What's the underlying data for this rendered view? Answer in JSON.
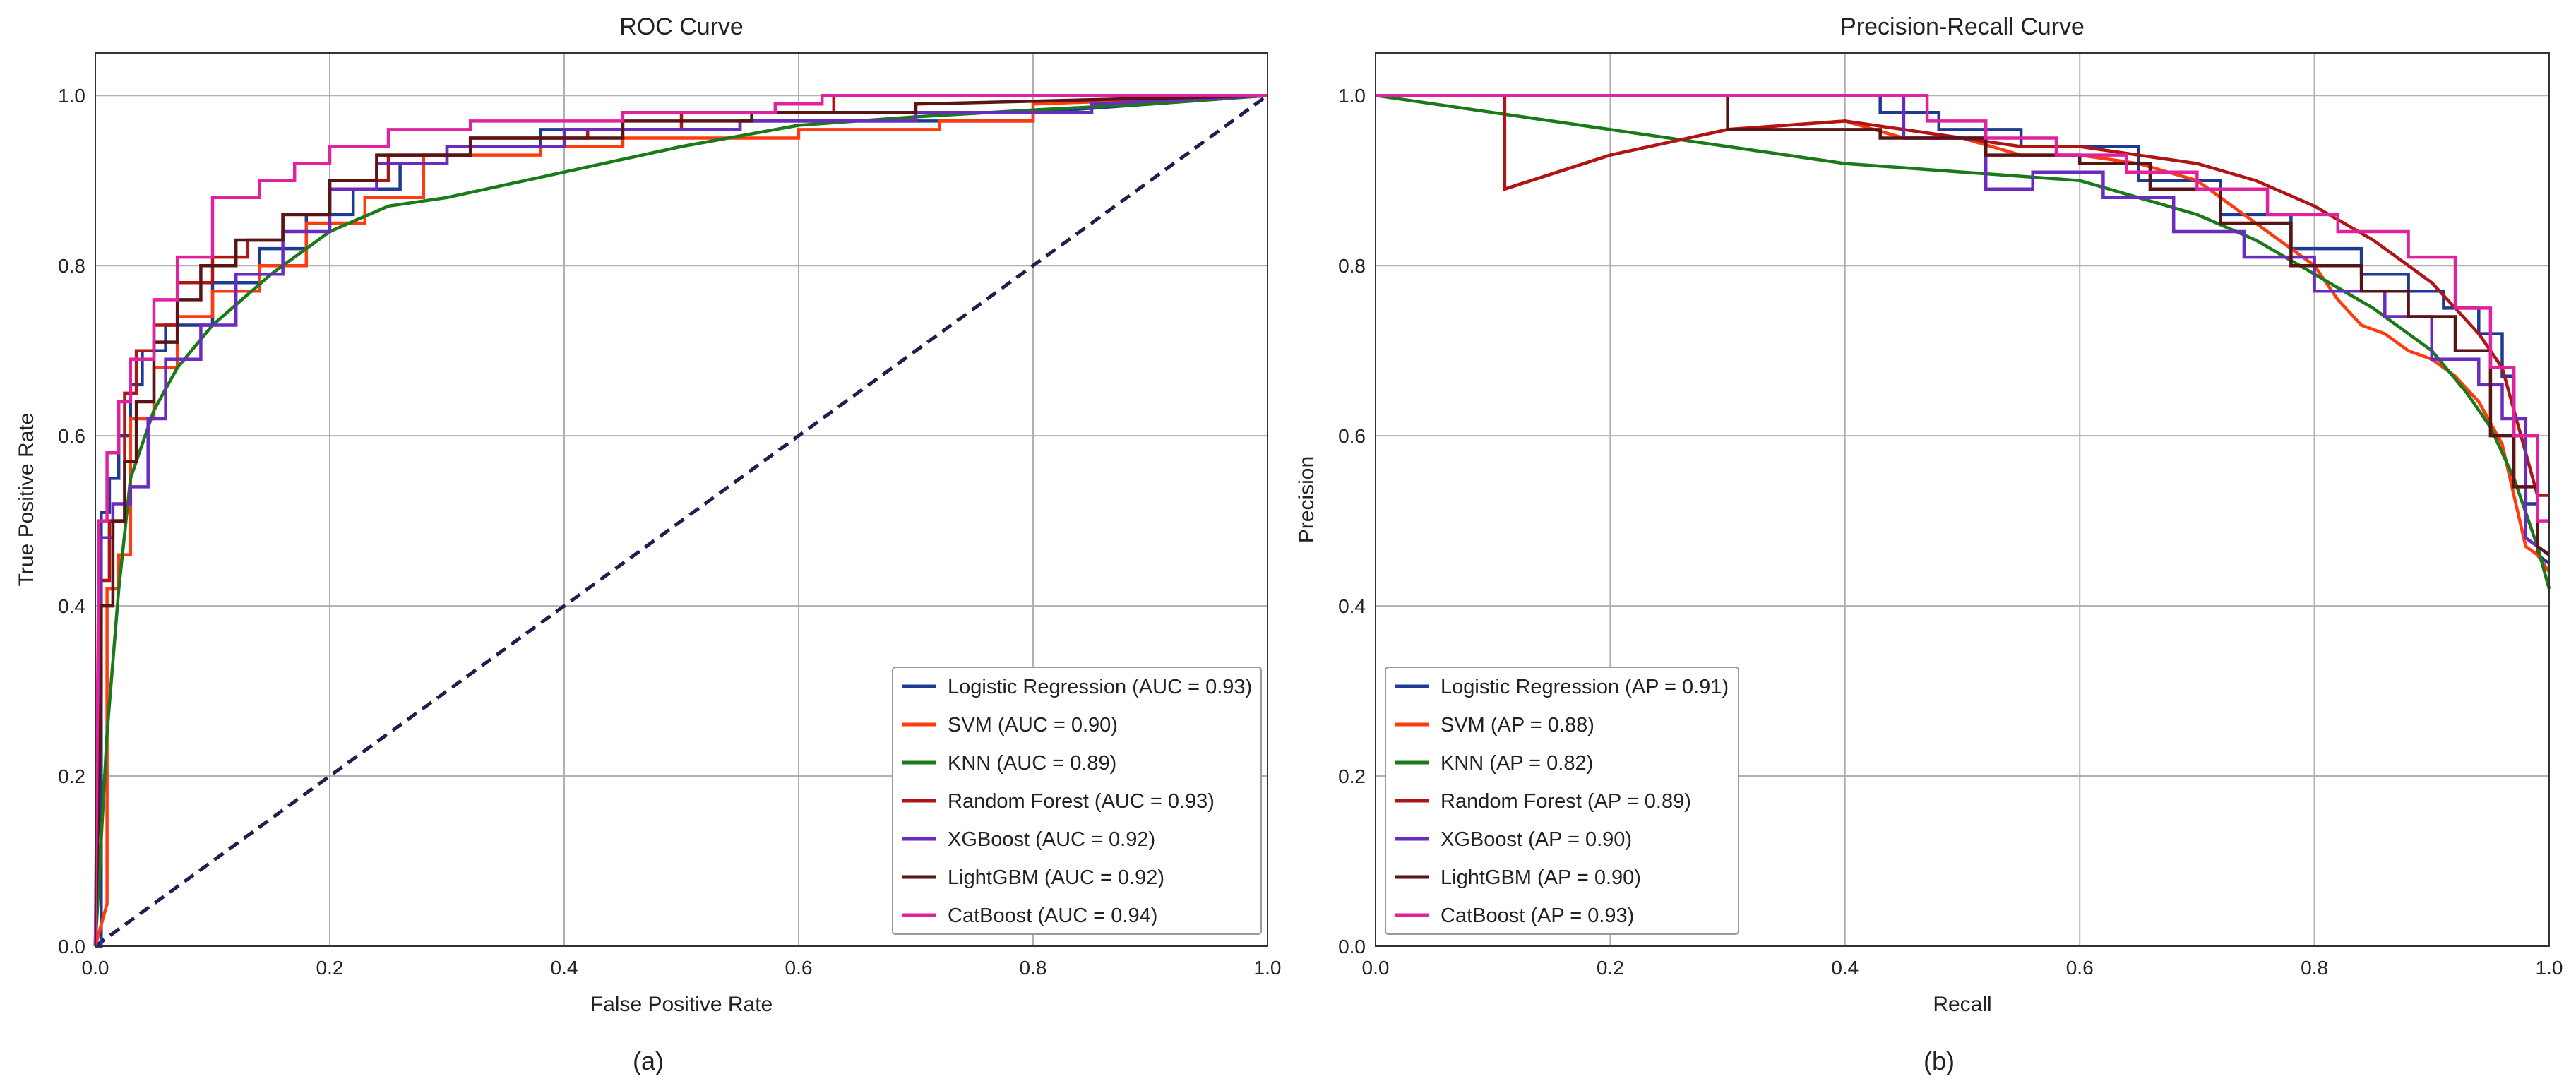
{
  "figure": {
    "panel_labels": [
      "(a)",
      "(b)"
    ]
  },
  "chart_data": [
    {
      "type": "line",
      "title": "ROC Curve",
      "xlabel": "False Positive Rate",
      "ylabel": "True Positive Rate",
      "xlim": [
        0,
        1
      ],
      "ylim": [
        0,
        1.05
      ],
      "xticks": [
        0.0,
        0.2,
        0.4,
        0.6,
        0.8,
        1.0
      ],
      "yticks": [
        0.0,
        0.2,
        0.4,
        0.6,
        0.8,
        1.0
      ],
      "xtick_labels": [
        "0.0",
        "0.2",
        "0.4",
        "0.6",
        "0.8",
        "1.0"
      ],
      "ytick_labels": [
        "0.0",
        "0.2",
        "0.4",
        "0.6",
        "0.8",
        "1.0"
      ],
      "grid": true,
      "legend_position": "lower-right",
      "diagonal": {
        "color": "#1f1f4f",
        "dashed": true,
        "x": [
          0,
          1
        ],
        "y": [
          0,
          1
        ]
      },
      "series": [
        {
          "name": "Logistic Regression (AUC = 0.93)",
          "color": "#1f3a93",
          "step": true,
          "x": [
            0,
            0.005,
            0.005,
            0.012,
            0.012,
            0.02,
            0.02,
            0.03,
            0.03,
            0.04,
            0.04,
            0.06,
            0.06,
            0.1,
            0.1,
            0.14,
            0.14,
            0.18,
            0.18,
            0.22,
            0.22,
            0.26,
            0.26,
            0.3,
            0.3,
            0.38,
            0.38,
            0.55,
            0.55,
            0.8,
            0.8,
            1.0
          ],
          "y": [
            0,
            0,
            0.51,
            0.51,
            0.55,
            0.55,
            0.6,
            0.6,
            0.66,
            0.66,
            0.7,
            0.7,
            0.73,
            0.73,
            0.78,
            0.78,
            0.82,
            0.82,
            0.86,
            0.86,
            0.89,
            0.89,
            0.92,
            0.92,
            0.94,
            0.94,
            0.96,
            0.96,
            0.97,
            0.97,
            0.98,
            1.0
          ]
        },
        {
          "name": "SVM (AUC = 0.90)",
          "color": "#ff3b10",
          "step": true,
          "x": [
            0,
            0.01,
            0.01,
            0.02,
            0.02,
            0.03,
            0.03,
            0.05,
            0.05,
            0.07,
            0.07,
            0.1,
            0.1,
            0.14,
            0.14,
            0.18,
            0.18,
            0.23,
            0.23,
            0.28,
            0.28,
            0.38,
            0.38,
            0.45,
            0.45,
            0.6,
            0.6,
            0.72,
            0.72,
            0.8,
            0.8,
            1.0
          ],
          "y": [
            0,
            0.05,
            0.42,
            0.42,
            0.46,
            0.46,
            0.62,
            0.62,
            0.68,
            0.68,
            0.74,
            0.74,
            0.77,
            0.77,
            0.8,
            0.8,
            0.85,
            0.85,
            0.88,
            0.88,
            0.93,
            0.93,
            0.94,
            0.94,
            0.95,
            0.95,
            0.96,
            0.96,
            0.97,
            0.97,
            0.99,
            1.0
          ]
        },
        {
          "name": "KNN (AUC = 0.89)",
          "color": "#1a7a1a",
          "step": false,
          "x": [
            0,
            0.01,
            0.02,
            0.03,
            0.05,
            0.07,
            0.1,
            0.15,
            0.2,
            0.25,
            0.3,
            0.4,
            0.5,
            0.6,
            0.7,
            0.8,
            0.9,
            1.0
          ],
          "y": [
            0,
            0.25,
            0.42,
            0.55,
            0.63,
            0.68,
            0.73,
            0.79,
            0.84,
            0.87,
            0.88,
            0.91,
            0.94,
            0.965,
            0.975,
            0.983,
            0.99,
            1.0
          ]
        },
        {
          "name": "Random Forest (AUC = 0.93)",
          "color": "#b01515",
          "step": true,
          "x": [
            0,
            0.005,
            0.005,
            0.012,
            0.012,
            0.025,
            0.025,
            0.035,
            0.035,
            0.05,
            0.05,
            0.07,
            0.07,
            0.1,
            0.1,
            0.13,
            0.13,
            0.16,
            0.16,
            0.2,
            0.2,
            0.25,
            0.25,
            0.32,
            0.32,
            0.42,
            0.42,
            0.5,
            0.5,
            0.63,
            0.63,
            1.0
          ],
          "y": [
            0,
            0.38,
            0.43,
            0.43,
            0.5,
            0.5,
            0.65,
            0.65,
            0.7,
            0.7,
            0.73,
            0.73,
            0.78,
            0.78,
            0.81,
            0.81,
            0.83,
            0.83,
            0.86,
            0.86,
            0.9,
            0.9,
            0.93,
            0.93,
            0.95,
            0.95,
            0.96,
            0.96,
            0.98,
            0.98,
            1.0,
            1.0
          ]
        },
        {
          "name": "XGBoost (AUC = 0.92)",
          "color": "#6a2bc0",
          "step": true,
          "x": [
            0,
            0.005,
            0.005,
            0.015,
            0.015,
            0.03,
            0.03,
            0.045,
            0.045,
            0.06,
            0.06,
            0.09,
            0.09,
            0.12,
            0.12,
            0.16,
            0.16,
            0.2,
            0.2,
            0.24,
            0.24,
            0.3,
            0.3,
            0.4,
            0.4,
            0.55,
            0.55,
            0.7,
            0.7,
            0.85,
            0.85,
            1.0
          ],
          "y": [
            0,
            0.45,
            0.48,
            0.48,
            0.52,
            0.52,
            0.54,
            0.54,
            0.62,
            0.62,
            0.69,
            0.69,
            0.73,
            0.73,
            0.79,
            0.79,
            0.84,
            0.84,
            0.89,
            0.89,
            0.92,
            0.92,
            0.94,
            0.94,
            0.96,
            0.96,
            0.97,
            0.97,
            0.98,
            0.98,
            0.99,
            1.0
          ]
        },
        {
          "name": "LightGBM (AUC = 0.92)",
          "color": "#5a1414",
          "step": true,
          "x": [
            0,
            0.005,
            0.005,
            0.015,
            0.015,
            0.025,
            0.025,
            0.035,
            0.035,
            0.05,
            0.05,
            0.07,
            0.07,
            0.09,
            0.09,
            0.12,
            0.12,
            0.16,
            0.16,
            0.2,
            0.2,
            0.24,
            0.24,
            0.32,
            0.32,
            0.45,
            0.45,
            0.56,
            0.56,
            0.7,
            0.7,
            1.0
          ],
          "y": [
            0,
            0.3,
            0.4,
            0.4,
            0.5,
            0.5,
            0.57,
            0.57,
            0.64,
            0.64,
            0.71,
            0.71,
            0.76,
            0.76,
            0.8,
            0.8,
            0.83,
            0.83,
            0.86,
            0.86,
            0.9,
            0.9,
            0.93,
            0.93,
            0.95,
            0.95,
            0.97,
            0.97,
            0.98,
            0.98,
            0.99,
            1.0
          ]
        },
        {
          "name": "CatBoost (AUC = 0.94)",
          "color": "#e0229f",
          "step": true,
          "x": [
            0,
            0.003,
            0.003,
            0.01,
            0.01,
            0.02,
            0.02,
            0.03,
            0.03,
            0.05,
            0.05,
            0.07,
            0.07,
            0.1,
            0.1,
            0.14,
            0.14,
            0.17,
            0.17,
            0.2,
            0.2,
            0.25,
            0.25,
            0.32,
            0.32,
            0.45,
            0.45,
            0.58,
            0.58,
            0.62,
            0.62,
            1.0
          ],
          "y": [
            0,
            0.47,
            0.5,
            0.5,
            0.58,
            0.58,
            0.64,
            0.64,
            0.69,
            0.69,
            0.76,
            0.76,
            0.81,
            0.81,
            0.88,
            0.88,
            0.9,
            0.9,
            0.92,
            0.92,
            0.94,
            0.94,
            0.96,
            0.96,
            0.97,
            0.97,
            0.98,
            0.98,
            0.99,
            0.99,
            1.0,
            1.0
          ]
        }
      ]
    },
    {
      "type": "line",
      "title": "Precision-Recall Curve",
      "xlabel": "Recall",
      "ylabel": "Precision",
      "xlim": [
        0,
        1
      ],
      "ylim": [
        0,
        1.05
      ],
      "xticks": [
        0.0,
        0.2,
        0.4,
        0.6,
        0.8,
        1.0
      ],
      "yticks": [
        0.0,
        0.2,
        0.4,
        0.6,
        0.8,
        1.0
      ],
      "xtick_labels": [
        "0.0",
        "0.2",
        "0.4",
        "0.6",
        "0.8",
        "1.0"
      ],
      "ytick_labels": [
        "0.0",
        "0.2",
        "0.4",
        "0.6",
        "0.8",
        "1.0"
      ],
      "grid": true,
      "legend_position": "lower-left",
      "series": [
        {
          "name": "Logistic Regression (AP = 0.91)",
          "color": "#1f3a93",
          "step": true,
          "x": [
            0,
            0.43,
            0.43,
            0.48,
            0.48,
            0.55,
            0.55,
            0.65,
            0.65,
            0.72,
            0.72,
            0.78,
            0.78,
            0.84,
            0.84,
            0.88,
            0.88,
            0.91,
            0.91,
            0.94,
            0.94,
            0.96,
            0.96,
            0.97,
            0.97,
            0.98,
            0.98,
            0.99,
            0.99,
            1.0
          ],
          "y": [
            1.0,
            1.0,
            0.98,
            0.98,
            0.96,
            0.96,
            0.94,
            0.94,
            0.9,
            0.9,
            0.86,
            0.86,
            0.82,
            0.82,
            0.79,
            0.79,
            0.77,
            0.77,
            0.75,
            0.75,
            0.72,
            0.72,
            0.67,
            0.67,
            0.6,
            0.6,
            0.52,
            0.52,
            0.46,
            0.45
          ]
        },
        {
          "name": "SVM (AP = 0.88)",
          "color": "#ff3b10",
          "step": false,
          "x": [
            0,
            0.11,
            0.11,
            0.2,
            0.3,
            0.4,
            0.45,
            0.5,
            0.55,
            0.6,
            0.65,
            0.7,
            0.75,
            0.8,
            0.82,
            0.84,
            0.86,
            0.88,
            0.9,
            0.92,
            0.94,
            0.96,
            0.97,
            0.98,
            0.99,
            1.0
          ],
          "y": [
            1.0,
            1.0,
            0.89,
            0.93,
            0.96,
            0.97,
            0.95,
            0.95,
            0.93,
            0.93,
            0.92,
            0.9,
            0.85,
            0.8,
            0.76,
            0.73,
            0.72,
            0.7,
            0.69,
            0.67,
            0.64,
            0.59,
            0.53,
            0.47,
            0.46,
            0.44
          ]
        },
        {
          "name": "KNN (AP = 0.82)",
          "color": "#1a7a1a",
          "step": false,
          "x": [
            0,
            0.1,
            0.2,
            0.3,
            0.4,
            0.5,
            0.6,
            0.65,
            0.7,
            0.75,
            0.8,
            0.85,
            0.9,
            0.93,
            0.95,
            0.97,
            0.99,
            1.0
          ],
          "y": [
            1.0,
            0.98,
            0.96,
            0.94,
            0.92,
            0.91,
            0.9,
            0.88,
            0.86,
            0.83,
            0.79,
            0.75,
            0.7,
            0.65,
            0.61,
            0.55,
            0.47,
            0.42
          ]
        },
        {
          "name": "Random Forest (AP = 0.89)",
          "color": "#b01515",
          "step": false,
          "x": [
            0,
            0.11,
            0.11,
            0.2,
            0.3,
            0.4,
            0.45,
            0.5,
            0.55,
            0.6,
            0.65,
            0.7,
            0.75,
            0.8,
            0.85,
            0.88,
            0.9,
            0.92,
            0.94,
            0.96,
            0.97,
            0.98,
            0.99,
            1.0
          ],
          "y": [
            1.0,
            1.0,
            0.89,
            0.93,
            0.96,
            0.97,
            0.96,
            0.95,
            0.94,
            0.94,
            0.93,
            0.92,
            0.9,
            0.87,
            0.83,
            0.8,
            0.78,
            0.75,
            0.72,
            0.68,
            0.63,
            0.58,
            0.53,
            0.53
          ]
        },
        {
          "name": "XGBoost (AP = 0.90)",
          "color": "#6a2bc0",
          "step": true,
          "x": [
            0,
            0.45,
            0.45,
            0.52,
            0.52,
            0.56,
            0.56,
            0.62,
            0.62,
            0.68,
            0.68,
            0.74,
            0.74,
            0.8,
            0.8,
            0.86,
            0.86,
            0.9,
            0.9,
            0.94,
            0.94,
            0.96,
            0.96,
            0.98,
            0.98,
            1.0
          ],
          "y": [
            1.0,
            1.0,
            0.95,
            0.95,
            0.89,
            0.89,
            0.91,
            0.91,
            0.88,
            0.88,
            0.84,
            0.84,
            0.81,
            0.81,
            0.77,
            0.77,
            0.74,
            0.74,
            0.69,
            0.69,
            0.66,
            0.66,
            0.62,
            0.62,
            0.48,
            0.46
          ]
        },
        {
          "name": "LightGBM (AP = 0.90)",
          "color": "#5a1414",
          "step": true,
          "x": [
            0,
            0.3,
            0.3,
            0.43,
            0.43,
            0.52,
            0.52,
            0.6,
            0.6,
            0.66,
            0.66,
            0.72,
            0.72,
            0.78,
            0.78,
            0.84,
            0.84,
            0.88,
            0.88,
            0.92,
            0.92,
            0.95,
            0.95,
            0.97,
            0.97,
            0.99,
            0.99,
            1.0
          ],
          "y": [
            1.0,
            1.0,
            0.96,
            0.96,
            0.95,
            0.95,
            0.93,
            0.93,
            0.92,
            0.92,
            0.89,
            0.89,
            0.85,
            0.85,
            0.8,
            0.8,
            0.77,
            0.77,
            0.74,
            0.74,
            0.7,
            0.7,
            0.6,
            0.6,
            0.54,
            0.54,
            0.47,
            0.46
          ]
        },
        {
          "name": "CatBoost (AP = 0.93)",
          "color": "#e0229f",
          "step": true,
          "x": [
            0,
            0.47,
            0.47,
            0.52,
            0.52,
            0.58,
            0.58,
            0.64,
            0.64,
            0.7,
            0.7,
            0.76,
            0.76,
            0.82,
            0.82,
            0.88,
            0.88,
            0.92,
            0.92,
            0.95,
            0.95,
            0.97,
            0.97,
            0.99,
            0.99,
            1.0
          ],
          "y": [
            1.0,
            1.0,
            0.97,
            0.97,
            0.95,
            0.95,
            0.93,
            0.93,
            0.91,
            0.91,
            0.89,
            0.89,
            0.86,
            0.86,
            0.84,
            0.84,
            0.81,
            0.81,
            0.75,
            0.75,
            0.68,
            0.68,
            0.6,
            0.6,
            0.5,
            0.5
          ]
        }
      ]
    }
  ]
}
